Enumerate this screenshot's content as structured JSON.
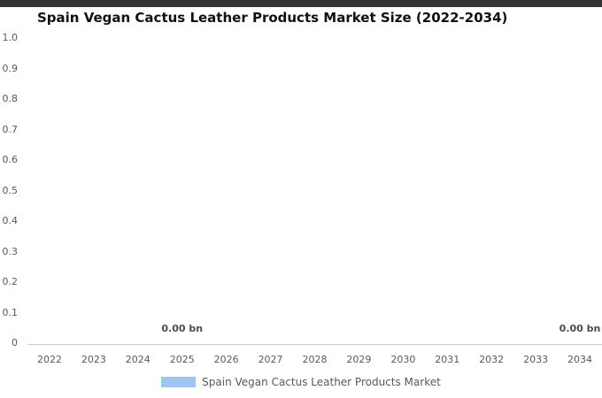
{
  "page": {
    "top_bar_color": "#333333",
    "background_color": "#ffffff"
  },
  "title": "Spain Vegan Cactus Leather Products Market Size (2022-2034)",
  "legend": {
    "label": "Spain Vegan Cactus Leather Products Market",
    "swatch_color": "#9fc5f0",
    "position": "bottom"
  },
  "chart_data": {
    "type": "bar",
    "title": "Spain Vegan Cactus Leather Products Market Size (2022-2034)",
    "categories": [
      "2022",
      "2023",
      "2024",
      "2025",
      "2026",
      "2027",
      "2028",
      "2029",
      "2030",
      "2031",
      "2032",
      "2033",
      "2034"
    ],
    "series": [
      {
        "name": "Spain Vegan Cactus Leather Products Market",
        "color": "#9fc5f0",
        "values": [
          0,
          0,
          0,
          0,
          0,
          0,
          0,
          0,
          0,
          0,
          0,
          0,
          0
        ]
      }
    ],
    "value_labels": [
      "",
      "",
      "",
      "0.00 bn",
      "",
      "",
      "",
      "",
      "",
      "",
      "",
      "",
      "0.00 bn"
    ],
    "value_unit": "bn",
    "xlabel": "",
    "ylabel": "",
    "ylim": [
      0,
      1.0
    ],
    "y_ticks": [
      "1.0",
      "0.9",
      "0.8",
      "0.7",
      "0.6",
      "0.5",
      "0.4",
      "0.3",
      "0.2",
      "0.1",
      "0"
    ],
    "grid": false,
    "legend_position": "bottom"
  }
}
